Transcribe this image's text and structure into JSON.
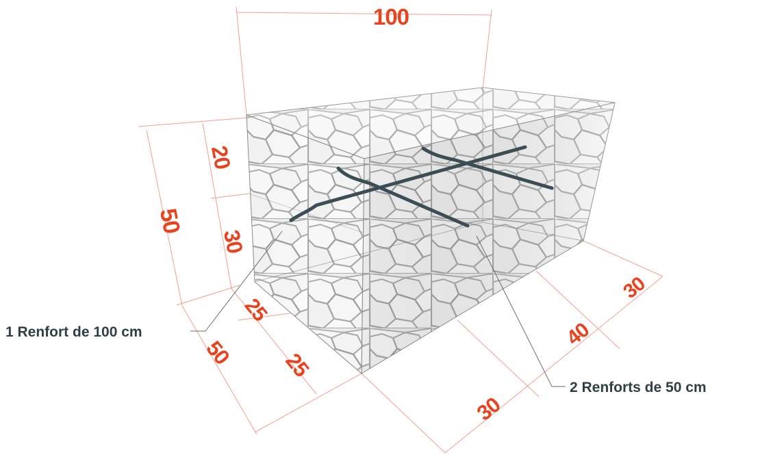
{
  "dimensions": {
    "length_top": "100",
    "height_total": "50",
    "height_upper": "20",
    "height_lower": "30",
    "width_total": "50",
    "width_part_a": "25",
    "width_part_b": "25",
    "length_part_a": "30",
    "length_part_b": "40",
    "length_part_c": "30"
  },
  "callouts": {
    "single_reinforcement": "1 Renfort de 100 cm",
    "double_reinforcement": "2 Renforts de 50 cm"
  },
  "colors": {
    "dimension_text": "#e8431f",
    "dimension_lines": "#f0a090",
    "callout_text": "#2f3f45",
    "reinforcement": "#3c4d55",
    "stone": "#e6e6e6"
  }
}
